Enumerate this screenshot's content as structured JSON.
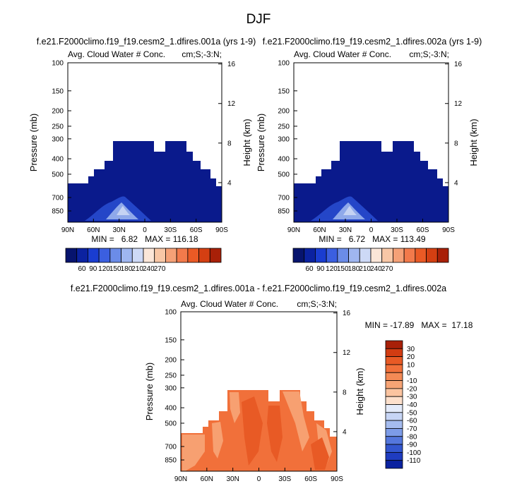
{
  "page_title": "DJF",
  "colors": {
    "dark_navy": "#0a1a8c",
    "medium_blue": "#2446c8",
    "light_blue": "#8fa9ea",
    "pale_blue": "#c5d3f3",
    "diff_fill": "#f1703a",
    "diff_fill_light": "#f7a071",
    "diff_fill_dark": "#e85a25"
  },
  "chart_data": [
    {
      "type": "contour",
      "title": "f.e21.F2000climo.f19_f19.cesm2_1.dfires.001a (yrs 1-9)",
      "left_label": "Avg. Cloud Water # Conc.",
      "right_label": "cm;S;-3:N;",
      "xlabel": "",
      "ylabel": "Pressure (mb)",
      "ylabel_right": "Height (km)",
      "x_ticks": [
        "90N",
        "60N",
        "30N",
        "0",
        "30S",
        "60S",
        "90S"
      ],
      "y_ticks": [
        "100",
        "150",
        "200",
        "250",
        "300",
        "400",
        "500",
        "700",
        "850"
      ],
      "y_right_ticks": [
        "16",
        "12",
        "8",
        "4"
      ],
      "minmax_text": "MIN =   6.82   MAX = 116.18",
      "min": 6.82,
      "max": 116.18,
      "colorbar_labels": [
        "60",
        "90",
        "120",
        "150",
        "180",
        "210",
        "240",
        "270"
      ]
    },
    {
      "type": "contour",
      "title": "f.e21.F2000climo.f19_f19.cesm2_1.dfires.002a (yrs 1-9)",
      "left_label": "Avg. Cloud Water # Conc.",
      "right_label": "cm;S;-3:N;",
      "xlabel": "",
      "ylabel": "Pressure (mb)",
      "ylabel_right": "Height (km)",
      "x_ticks": [
        "90N",
        "60N",
        "30N",
        "0",
        "30S",
        "60S",
        "90S"
      ],
      "y_ticks": [
        "100",
        "150",
        "200",
        "250",
        "300",
        "400",
        "500",
        "700",
        "850"
      ],
      "y_right_ticks": [
        "16",
        "12",
        "8",
        "4"
      ],
      "minmax_text": "MIN =   6.72   MAX = 113.49",
      "min": 6.72,
      "max": 113.49,
      "colorbar_labels": [
        "60",
        "90",
        "120",
        "150",
        "180",
        "210",
        "240",
        "270"
      ]
    },
    {
      "type": "contour",
      "title": "f.e21.F2000climo.f19_f19.cesm2_1.dfires.001a - f.e21.F2000climo.f19_f19.cesm2_1.dfires.002a",
      "left_label": "Avg. Cloud Water # Conc.",
      "right_label": "cm;S;-3:N;",
      "xlabel": "",
      "ylabel": "Pressure (mb)",
      "ylabel_right": "Height (km)",
      "x_ticks": [
        "90N",
        "60N",
        "30N",
        "0",
        "30S",
        "60S",
        "90S"
      ],
      "y_ticks": [
        "100",
        "150",
        "200",
        "250",
        "300",
        "400",
        "500",
        "700",
        "850"
      ],
      "y_right_ticks": [
        "16",
        "12",
        "8",
        "4"
      ],
      "minmax_text": "MIN = -17.89   MAX =  17.18",
      "min": -17.89,
      "max": 17.18,
      "colorbar_labels": [
        "30",
        "20",
        "10",
        "0",
        "-10",
        "-20",
        "-30",
        "-40",
        "-50",
        "-60",
        "-70",
        "-80",
        "-90",
        "-100",
        "-110"
      ]
    }
  ]
}
